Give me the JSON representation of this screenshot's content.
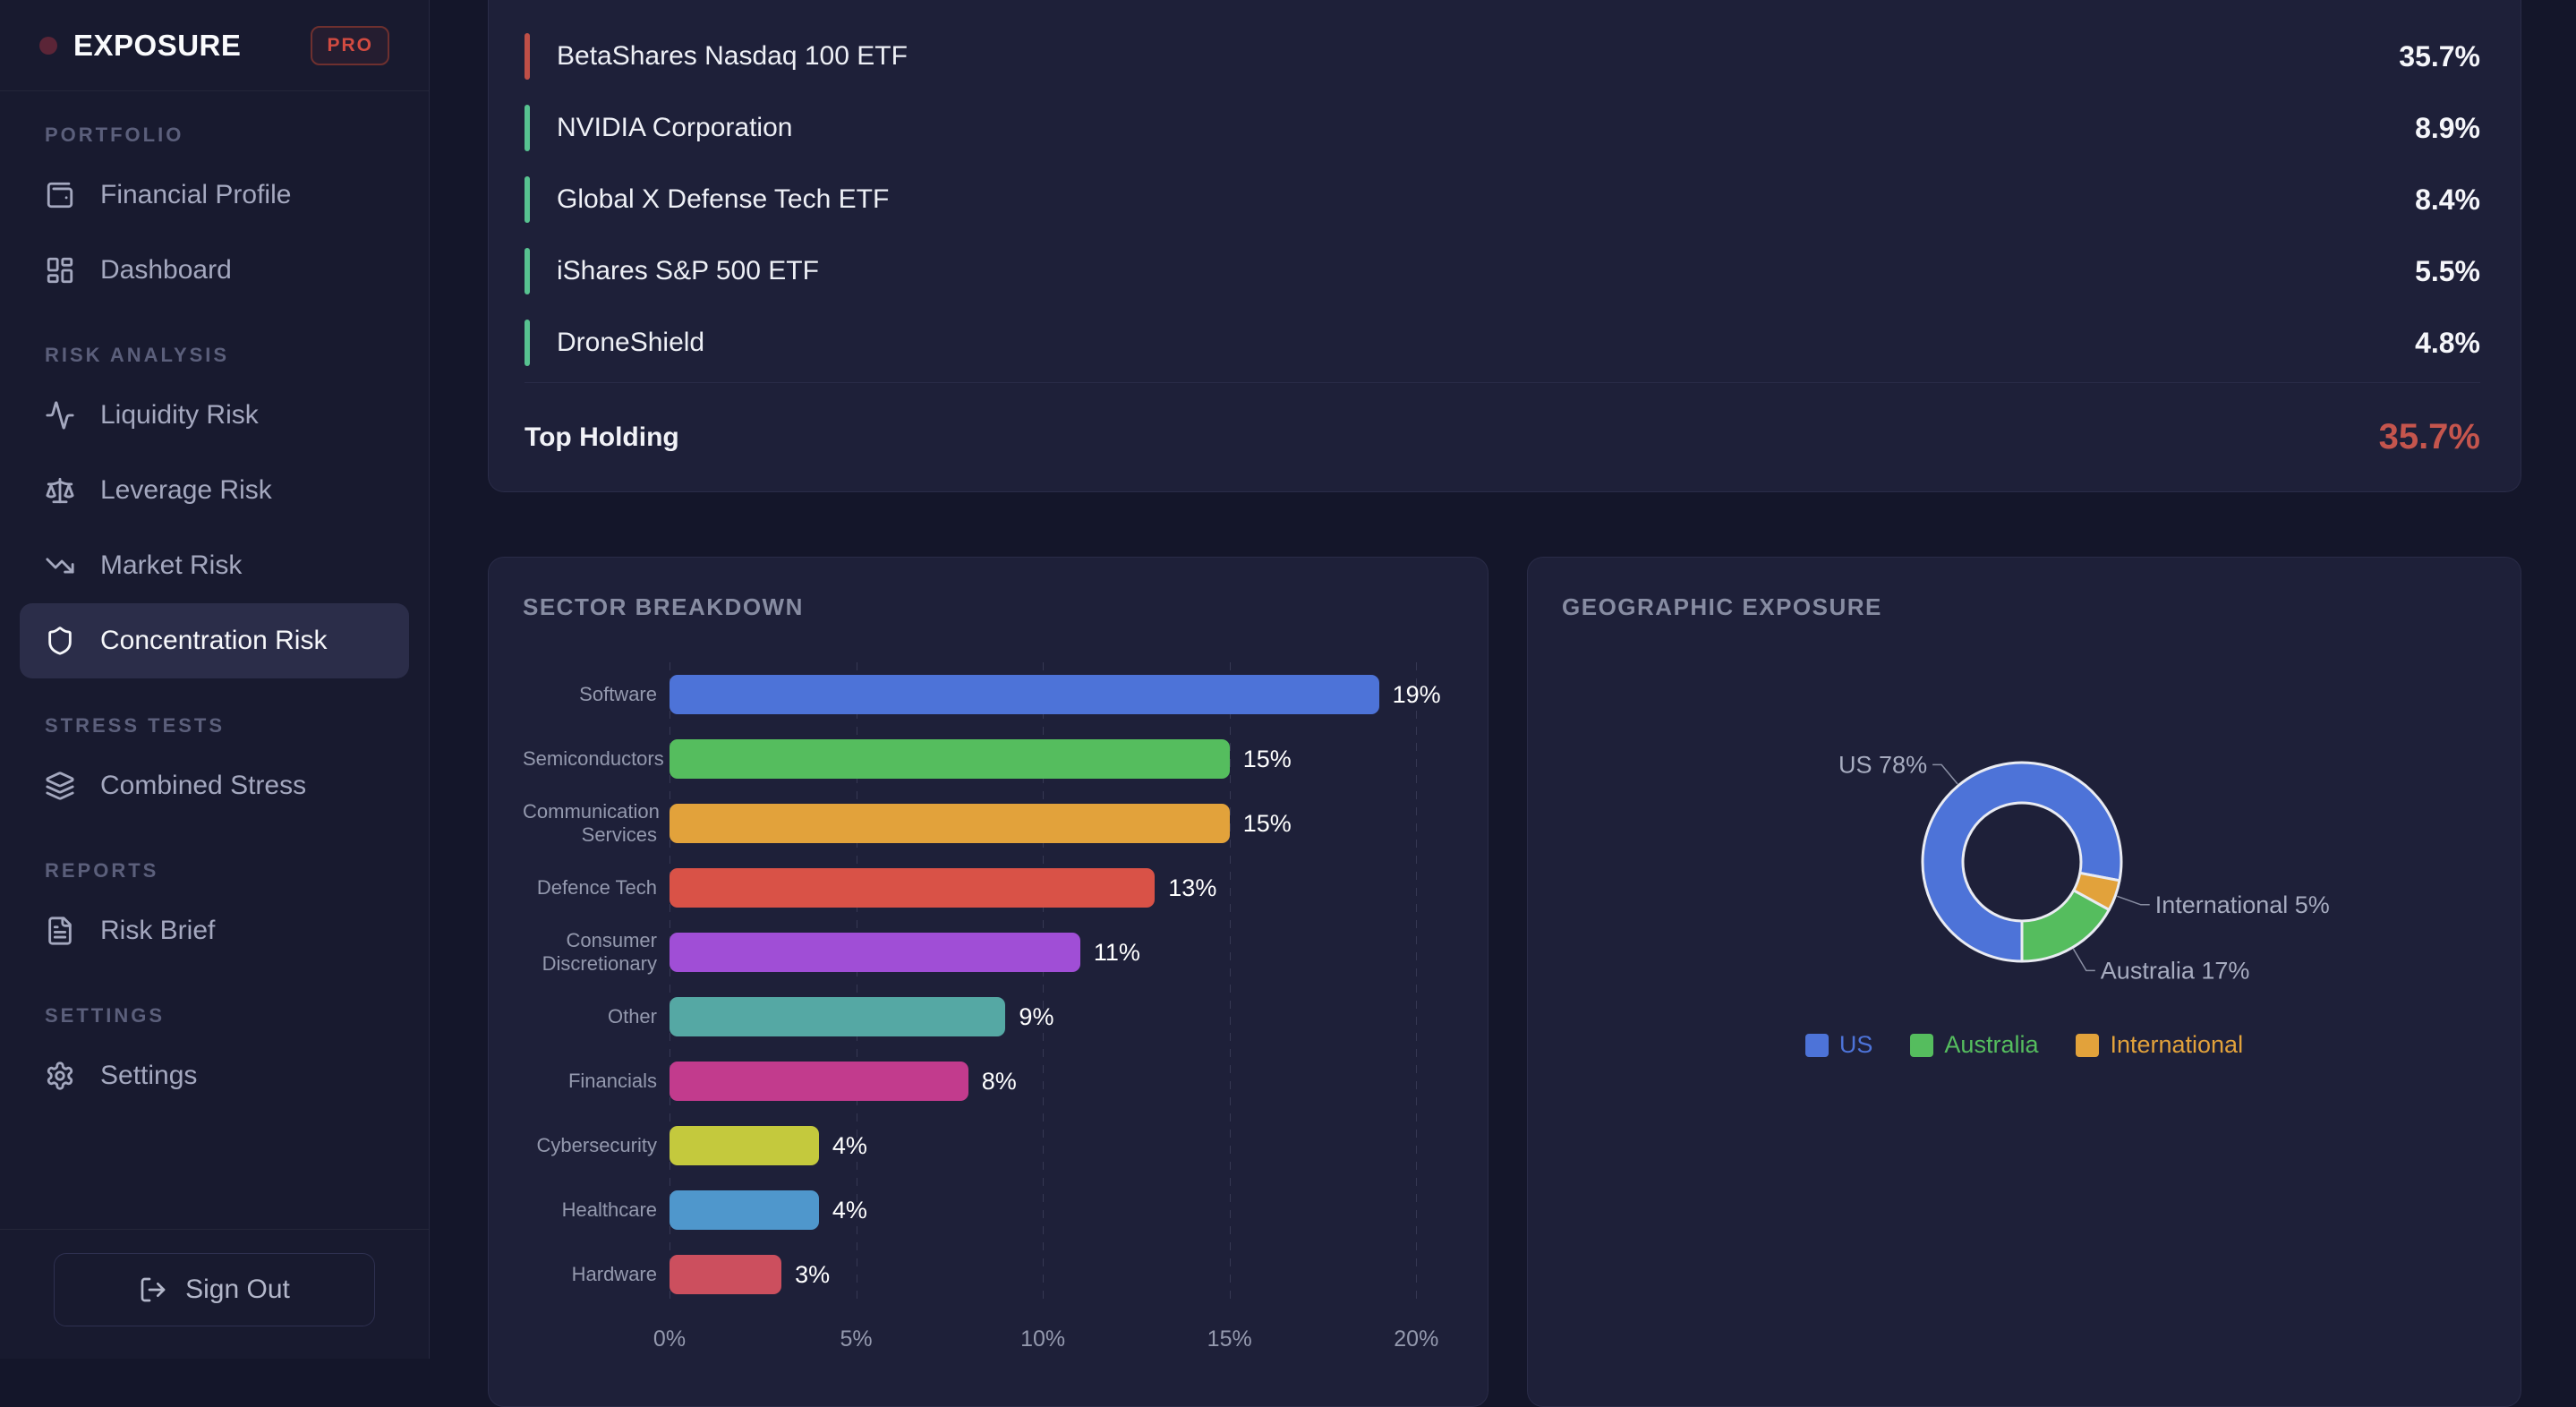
{
  "brand": {
    "name": "EXPOSURE",
    "badge": "PRO"
  },
  "sidebar": {
    "sections": [
      {
        "label": "PORTFOLIO",
        "items": [
          {
            "label": "Financial Profile",
            "icon": "wallet",
            "active": false
          },
          {
            "label": "Dashboard",
            "icon": "dashboard",
            "active": false
          }
        ]
      },
      {
        "label": "RISK ANALYSIS",
        "items": [
          {
            "label": "Liquidity Risk",
            "icon": "activity",
            "active": false
          },
          {
            "label": "Leverage Risk",
            "icon": "scale",
            "active": false
          },
          {
            "label": "Market Risk",
            "icon": "trending-down",
            "active": false
          },
          {
            "label": "Concentration Risk",
            "icon": "shield",
            "active": true
          }
        ]
      },
      {
        "label": "STRESS TESTS",
        "items": [
          {
            "label": "Combined Stress",
            "icon": "layers",
            "active": false
          }
        ]
      },
      {
        "label": "REPORTS",
        "items": [
          {
            "label": "Risk Brief",
            "icon": "file-text",
            "active": false
          }
        ]
      },
      {
        "label": "SETTINGS",
        "items": [
          {
            "label": "Settings",
            "icon": "settings",
            "active": false
          }
        ]
      }
    ],
    "sign_out_label": "Sign Out"
  },
  "holdings_card": {
    "rows": [
      {
        "name": "BetaShares Nasdaq 100 ETF",
        "value": "35.7%",
        "accent": "#bf4f47"
      },
      {
        "name": "NVIDIA Corporation",
        "value": "8.9%",
        "accent": "#57c290"
      },
      {
        "name": "Global X Defense Tech ETF",
        "value": "8.4%",
        "accent": "#57c290"
      },
      {
        "name": "iShares S&P 500 ETF",
        "value": "5.5%",
        "accent": "#57c290"
      },
      {
        "name": "DroneShield",
        "value": "4.8%",
        "accent": "#57c290"
      }
    ],
    "footer_label": "Top Holding",
    "footer_value": "35.7%",
    "footer_value_color": "#c5554d"
  },
  "chart_data": [
    {
      "type": "bar",
      "title": "SECTOR BREAKDOWN",
      "orientation": "horizontal",
      "categories": [
        "Software",
        "Semiconductors",
        "Communication Services",
        "Defence Tech",
        "Consumer Discretionary",
        "Other",
        "Financials",
        "Cybersecurity",
        "Healthcare",
        "Hardware"
      ],
      "values": [
        19,
        15,
        15,
        13,
        11,
        9,
        8,
        4,
        4,
        3
      ],
      "colors": [
        "#4d73d8",
        "#55bd5e",
        "#e2a23b",
        "#d95247",
        "#a04ed6",
        "#55a8a4",
        "#c23b8d",
        "#c4c93d",
        "#4f97cc",
        "#cc4f5e"
      ],
      "value_labels": [
        "19%",
        "15%",
        "15%",
        "13%",
        "11%",
        "9%",
        "8%",
        "4%",
        "4%",
        "3%"
      ],
      "x_ticks": [
        0,
        5,
        10,
        15,
        20
      ],
      "x_tick_labels": [
        "0%",
        "5%",
        "10%",
        "15%",
        "20%"
      ],
      "xlim": [
        0,
        21
      ],
      "xlabel": "",
      "ylabel": "",
      "grid": "dashed-vertical"
    },
    {
      "type": "pie",
      "title": "GEOGRAPHIC EXPOSURE",
      "donut": true,
      "start_angle_cw_from_top": 180,
      "segments": [
        {
          "label": "US",
          "value": 78,
          "color": "#4d73d8",
          "callout": "US 78%"
        },
        {
          "label": "International",
          "value": 5,
          "color": "#e2a23b",
          "callout": "International 5%"
        },
        {
          "label": "Australia",
          "value": 17,
          "color": "#55bd5e",
          "callout": "Australia 17%"
        }
      ],
      "legend": [
        {
          "label": "US",
          "color": "#4d73d8"
        },
        {
          "label": "Australia",
          "color": "#55bd5e"
        },
        {
          "label": "International",
          "color": "#e2a23b"
        }
      ],
      "legend_position": "bottom"
    }
  ]
}
